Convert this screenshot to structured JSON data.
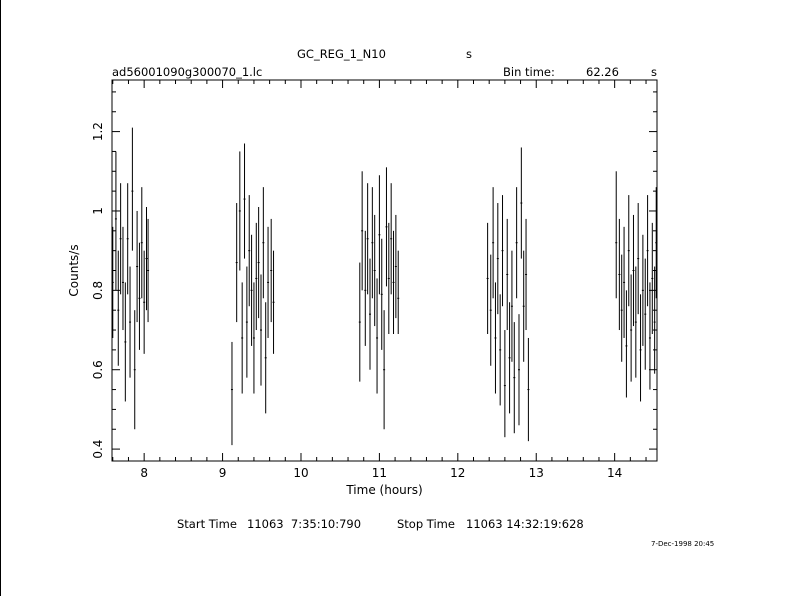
{
  "header": {
    "title": "GC_REG_1_N10",
    "title_unit": "s",
    "filename": "ad56001090g300070_1.lc",
    "bin_time_label": "Bin time:",
    "bin_time_value": "62.26",
    "bin_time_unit": "s"
  },
  "footer": {
    "start_label": "Start Time",
    "start_value": "11063  7:35:10:790",
    "stop_label": "Stop Time",
    "stop_value": "11063 14:32:19:628",
    "timestamp": "7-Dec-1998 20:45"
  },
  "chart_data": {
    "type": "scatter",
    "style": "vertical error bars (light curve)",
    "xlabel": "Time (hours)",
    "ylabel": "Counts/s",
    "xlim": [
      7.59,
      14.54
    ],
    "ylim": [
      0.37,
      1.33
    ],
    "xticks": [
      8,
      9,
      10,
      11,
      12,
      13,
      14
    ],
    "yticks": [
      0.4,
      0.6,
      0.8,
      1.0,
      1.2
    ],
    "ytick_labels": [
      "0.4",
      "0.6",
      "0.8",
      "1",
      "1.2"
    ],
    "grid": false,
    "series": [
      {
        "points": [
          {
            "x": 7.6,
            "y": 0.82,
            "lo": 0.68,
            "hi": 0.96
          },
          {
            "x": 7.64,
            "y": 0.98,
            "lo": 0.8,
            "hi": 1.15
          },
          {
            "x": 7.67,
            "y": 0.75,
            "lo": 0.61,
            "hi": 0.9
          },
          {
            "x": 7.7,
            "y": 0.93,
            "lo": 0.79,
            "hi": 1.07
          },
          {
            "x": 7.73,
            "y": 0.82,
            "lo": 0.7,
            "hi": 0.96
          },
          {
            "x": 7.76,
            "y": 0.67,
            "lo": 0.52,
            "hi": 0.82
          },
          {
            "x": 7.79,
            "y": 0.93,
            "lo": 0.79,
            "hi": 1.07
          },
          {
            "x": 7.82,
            "y": 0.72,
            "lo": 0.58,
            "hi": 0.86
          },
          {
            "x": 7.85,
            "y": 1.05,
            "lo": 0.9,
            "hi": 1.21
          },
          {
            "x": 7.88,
            "y": 0.6,
            "lo": 0.45,
            "hi": 0.75
          },
          {
            "x": 7.91,
            "y": 0.86,
            "lo": 0.72,
            "hi": 1.0
          },
          {
            "x": 7.94,
            "y": 0.78,
            "lo": 0.65,
            "hi": 0.92
          },
          {
            "x": 7.97,
            "y": 0.92,
            "lo": 0.78,
            "hi": 1.06
          },
          {
            "x": 8.0,
            "y": 0.77,
            "lo": 0.64,
            "hi": 0.9
          },
          {
            "x": 8.03,
            "y": 0.88,
            "lo": 0.75,
            "hi": 1.01
          },
          {
            "x": 8.05,
            "y": 0.85,
            "lo": 0.72,
            "hi": 0.98
          }
        ]
      },
      {
        "points": [
          {
            "x": 9.12,
            "y": 0.55,
            "lo": 0.41,
            "hi": 0.67
          },
          {
            "x": 9.18,
            "y": 0.87,
            "lo": 0.72,
            "hi": 1.02
          },
          {
            "x": 9.22,
            "y": 1.0,
            "lo": 0.85,
            "hi": 1.15
          },
          {
            "x": 9.25,
            "y": 0.68,
            "lo": 0.54,
            "hi": 0.82
          },
          {
            "x": 9.28,
            "y": 1.03,
            "lo": 0.88,
            "hi": 1.17
          },
          {
            "x": 9.31,
            "y": 0.72,
            "lo": 0.58,
            "hi": 0.86
          },
          {
            "x": 9.34,
            "y": 0.9,
            "lo": 0.76,
            "hi": 1.04
          },
          {
            "x": 9.37,
            "y": 0.8,
            "lo": 0.66,
            "hi": 0.94
          },
          {
            "x": 9.4,
            "y": 0.68,
            "lo": 0.54,
            "hi": 0.82
          },
          {
            "x": 9.43,
            "y": 0.83,
            "lo": 0.7,
            "hi": 0.97
          },
          {
            "x": 9.46,
            "y": 0.87,
            "lo": 0.73,
            "hi": 1.01
          },
          {
            "x": 9.49,
            "y": 0.7,
            "lo": 0.56,
            "hi": 0.84
          },
          {
            "x": 9.52,
            "y": 0.92,
            "lo": 0.78,
            "hi": 1.06
          },
          {
            "x": 9.55,
            "y": 0.63,
            "lo": 0.49,
            "hi": 0.77
          },
          {
            "x": 9.58,
            "y": 0.82,
            "lo": 0.68,
            "hi": 0.96
          },
          {
            "x": 9.62,
            "y": 0.85,
            "lo": 0.72,
            "hi": 0.98
          },
          {
            "x": 9.65,
            "y": 0.77,
            "lo": 0.64,
            "hi": 0.9
          }
        ]
      },
      {
        "points": [
          {
            "x": 10.75,
            "y": 0.72,
            "lo": 0.57,
            "hi": 0.87
          },
          {
            "x": 10.78,
            "y": 0.95,
            "lo": 0.8,
            "hi": 1.1
          },
          {
            "x": 10.82,
            "y": 0.8,
            "lo": 0.66,
            "hi": 0.95
          },
          {
            "x": 10.85,
            "y": 0.93,
            "lo": 0.79,
            "hi": 1.07
          },
          {
            "x": 10.88,
            "y": 0.74,
            "lo": 0.6,
            "hi": 0.88
          },
          {
            "x": 10.91,
            "y": 0.92,
            "lo": 0.78,
            "hi": 1.06
          },
          {
            "x": 10.94,
            "y": 0.85,
            "lo": 0.71,
            "hi": 0.99
          },
          {
            "x": 10.97,
            "y": 0.68,
            "lo": 0.54,
            "hi": 0.83
          },
          {
            "x": 11.0,
            "y": 0.94,
            "lo": 0.79,
            "hi": 1.09
          },
          {
            "x": 11.03,
            "y": 0.79,
            "lo": 0.65,
            "hi": 0.93
          },
          {
            "x": 11.06,
            "y": 0.6,
            "lo": 0.45,
            "hi": 0.75
          },
          {
            "x": 11.09,
            "y": 0.96,
            "lo": 0.81,
            "hi": 1.11
          },
          {
            "x": 11.12,
            "y": 0.83,
            "lo": 0.69,
            "hi": 0.97
          },
          {
            "x": 11.15,
            "y": 0.93,
            "lo": 0.79,
            "hi": 1.07
          },
          {
            "x": 11.18,
            "y": 0.82,
            "lo": 0.69,
            "hi": 0.95
          },
          {
            "x": 11.21,
            "y": 0.86,
            "lo": 0.73,
            "hi": 0.99
          },
          {
            "x": 11.24,
            "y": 0.78,
            "lo": 0.69,
            "hi": 0.9
          }
        ]
      },
      {
        "points": [
          {
            "x": 12.38,
            "y": 0.83,
            "lo": 0.69,
            "hi": 0.97
          },
          {
            "x": 12.42,
            "y": 0.75,
            "lo": 0.61,
            "hi": 0.89
          },
          {
            "x": 12.45,
            "y": 0.92,
            "lo": 0.78,
            "hi": 1.06
          },
          {
            "x": 12.48,
            "y": 0.68,
            "lo": 0.54,
            "hi": 0.82
          },
          {
            "x": 12.51,
            "y": 0.88,
            "lo": 0.74,
            "hi": 1.02
          },
          {
            "x": 12.54,
            "y": 0.65,
            "lo": 0.51,
            "hi": 0.79
          },
          {
            "x": 12.57,
            "y": 0.9,
            "lo": 0.76,
            "hi": 1.04
          },
          {
            "x": 12.6,
            "y": 0.56,
            "lo": 0.43,
            "hi": 0.7
          },
          {
            "x": 12.63,
            "y": 0.84,
            "lo": 0.7,
            "hi": 0.98
          },
          {
            "x": 12.66,
            "y": 0.63,
            "lo": 0.49,
            "hi": 0.77
          },
          {
            "x": 12.69,
            "y": 0.76,
            "lo": 0.62,
            "hi": 0.9
          },
          {
            "x": 12.72,
            "y": 0.58,
            "lo": 0.44,
            "hi": 0.72
          },
          {
            "x": 12.75,
            "y": 0.92,
            "lo": 0.78,
            "hi": 1.06
          },
          {
            "x": 12.78,
            "y": 0.6,
            "lo": 0.46,
            "hi": 0.74
          },
          {
            "x": 12.81,
            "y": 1.02,
            "lo": 0.88,
            "hi": 1.16
          },
          {
            "x": 12.84,
            "y": 0.76,
            "lo": 0.62,
            "hi": 0.9
          },
          {
            "x": 12.87,
            "y": 0.84,
            "lo": 0.7,
            "hi": 0.98
          },
          {
            "x": 12.9,
            "y": 0.55,
            "lo": 0.42,
            "hi": 0.68
          }
        ]
      },
      {
        "points": [
          {
            "x": 14.02,
            "y": 0.92,
            "lo": 0.78,
            "hi": 1.1
          },
          {
            "x": 14.06,
            "y": 0.84,
            "lo": 0.7,
            "hi": 0.98
          },
          {
            "x": 14.09,
            "y": 0.75,
            "lo": 0.62,
            "hi": 0.89
          },
          {
            "x": 14.12,
            "y": 0.82,
            "lo": 0.68,
            "hi": 0.96
          },
          {
            "x": 14.15,
            "y": 0.66,
            "lo": 0.53,
            "hi": 0.8
          },
          {
            "x": 14.18,
            "y": 0.9,
            "lo": 0.76,
            "hi": 1.04
          },
          {
            "x": 14.21,
            "y": 0.7,
            "lo": 0.57,
            "hi": 0.84
          },
          {
            "x": 14.24,
            "y": 0.85,
            "lo": 0.71,
            "hi": 0.99
          },
          {
            "x": 14.27,
            "y": 0.72,
            "lo": 0.58,
            "hi": 0.86
          },
          {
            "x": 14.3,
            "y": 0.88,
            "lo": 0.74,
            "hi": 1.02
          },
          {
            "x": 14.33,
            "y": 0.65,
            "lo": 0.52,
            "hi": 0.79
          },
          {
            "x": 14.36,
            "y": 0.8,
            "lo": 0.66,
            "hi": 0.94
          },
          {
            "x": 14.39,
            "y": 0.74,
            "lo": 0.6,
            "hi": 0.88
          },
          {
            "x": 14.42,
            "y": 0.9,
            "lo": 0.76,
            "hi": 1.04
          },
          {
            "x": 14.45,
            "y": 0.68,
            "lo": 0.55,
            "hi": 0.82
          },
          {
            "x": 14.48,
            "y": 0.83,
            "lo": 0.69,
            "hi": 0.97
          },
          {
            "x": 14.51,
            "y": 0.72,
            "lo": 0.59,
            "hi": 0.86
          },
          {
            "x": 14.53,
            "y": 0.92,
            "lo": 0.78,
            "hi": 1.06
          }
        ]
      }
    ]
  }
}
